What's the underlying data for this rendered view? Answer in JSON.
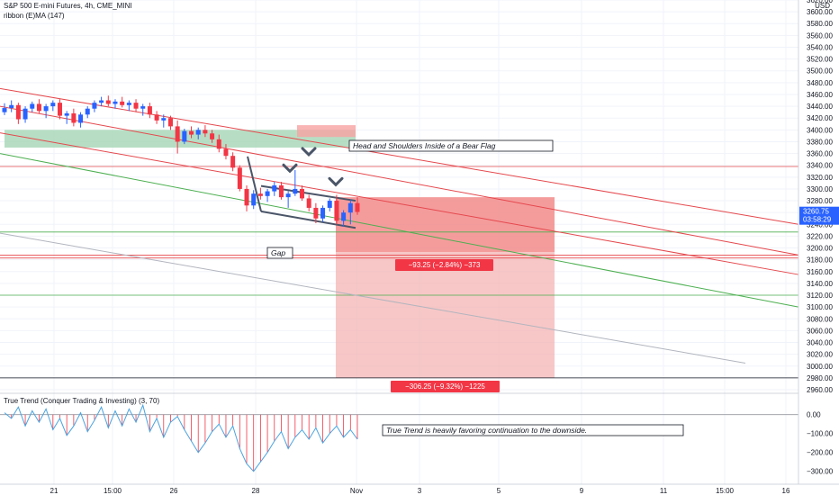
{
  "header": {
    "symbol_line": "S&P 500 E-mini Futures, 4h, CME_MINI",
    "ribbon_line": "ribbon (E)MA (147)"
  },
  "price_axis": {
    "currency": "USD",
    "ticks": [
      "3620.00",
      "3600.00",
      "3580.00",
      "3560.00",
      "3540.00",
      "3520.00",
      "3500.00",
      "3480.00",
      "3460.00",
      "3440.00",
      "3420.00",
      "3400.00",
      "3380.00",
      "3360.00",
      "3340.00",
      "3320.00",
      "3300.00",
      "3280.00",
      "3260.00",
      "3240.00",
      "3220.00",
      "3200.00",
      "3180.00",
      "3160.00",
      "3140.00",
      "3120.00",
      "3100.00",
      "3080.00",
      "3060.00",
      "3040.00",
      "3020.00",
      "3000.00",
      "2980.00",
      "2960.00"
    ],
    "ylim": [
      2960,
      3620
    ],
    "last_price": "3260.75",
    "countdown": "03:58:29",
    "last_price_color": "#2962ff"
  },
  "indicator": {
    "title": "True Trend (Conquer Trading & Investing) (3, 70)",
    "ticks": [
      "0.00",
      "−100.00",
      "−200.00",
      "−300.00"
    ],
    "ylim": [
      -330,
      70
    ]
  },
  "time_axis": {
    "labels": [
      "21",
      "15:00",
      "26",
      "28",
      "Nov",
      "3",
      "5",
      "9",
      "11",
      "15:00",
      "16"
    ]
  },
  "annotations": {
    "pattern_label": "Head and Shoulders Inside of a Bear Flag",
    "gap_label": "Gap",
    "trend_label": "True Trend is heavily favoring continuation to the downside.",
    "measure_1": "−93.25 (−2.84%) −373",
    "measure_2": "−306.25 (−9.32%) −1225"
  },
  "colors": {
    "up": "#2962ff",
    "down": "#f23645",
    "channel": "#e5484d",
    "green_line": "#4caf50",
    "grey_line": "#b2b5be",
    "short_zone": "#f7a1a1",
    "green_zone": "#a5d6b5",
    "arrow": "#4a5568"
  },
  "chart_data": {
    "type": "candlestick",
    "y_unit": "USD",
    "ylim": [
      2960,
      3620
    ],
    "levels": [
      3338,
      3227,
      3188,
      3183,
      3120,
      2980
    ],
    "candles": [
      [
        3430,
        3445,
        3425,
        3437
      ],
      [
        3437,
        3450,
        3430,
        3442
      ],
      [
        3442,
        3446,
        3410,
        3418
      ],
      [
        3418,
        3440,
        3412,
        3436
      ],
      [
        3436,
        3448,
        3430,
        3444
      ],
      [
        3444,
        3452,
        3428,
        3432
      ],
      [
        3432,
        3444,
        3420,
        3440
      ],
      [
        3440,
        3450,
        3432,
        3446
      ],
      [
        3446,
        3452,
        3418,
        3424
      ],
      [
        3424,
        3432,
        3410,
        3428
      ],
      [
        3428,
        3436,
        3406,
        3412
      ],
      [
        3412,
        3430,
        3404,
        3426
      ],
      [
        3426,
        3440,
        3420,
        3436
      ],
      [
        3436,
        3450,
        3430,
        3446
      ],
      [
        3446,
        3456,
        3440,
        3450
      ],
      [
        3450,
        3458,
        3440,
        3444
      ],
      [
        3444,
        3452,
        3436,
        3448
      ],
      [
        3448,
        3456,
        3438,
        3442
      ],
      [
        3442,
        3450,
        3432,
        3446
      ],
      [
        3446,
        3452,
        3430,
        3436
      ],
      [
        3436,
        3444,
        3424,
        3440
      ],
      [
        3440,
        3446,
        3420,
        3426
      ],
      [
        3426,
        3432,
        3410,
        3416
      ],
      [
        3416,
        3426,
        3404,
        3420
      ],
      [
        3420,
        3424,
        3400,
        3406
      ],
      [
        3406,
        3416,
        3360,
        3380
      ],
      [
        3380,
        3402,
        3376,
        3398
      ],
      [
        3398,
        3406,
        3386,
        3392
      ],
      [
        3392,
        3404,
        3384,
        3400
      ],
      [
        3400,
        3408,
        3388,
        3394
      ],
      [
        3394,
        3400,
        3378,
        3384
      ],
      [
        3384,
        3392,
        3362,
        3368
      ],
      [
        3368,
        3376,
        3350,
        3356
      ],
      [
        3356,
        3362,
        3330,
        3336
      ],
      [
        3336,
        3340,
        3296,
        3300
      ],
      [
        3300,
        3306,
        3262,
        3272
      ],
      [
        3272,
        3298,
        3266,
        3292
      ],
      [
        3292,
        3302,
        3282,
        3288
      ],
      [
        3288,
        3300,
        3278,
        3296
      ],
      [
        3296,
        3312,
        3288,
        3306
      ],
      [
        3306,
        3312,
        3282,
        3286
      ],
      [
        3286,
        3296,
        3268,
        3292
      ],
      [
        3292,
        3332,
        3288,
        3300
      ],
      [
        3300,
        3306,
        3280,
        3284
      ],
      [
        3284,
        3290,
        3262,
        3268
      ],
      [
        3268,
        3276,
        3242,
        3250
      ],
      [
        3250,
        3272,
        3244,
        3268
      ],
      [
        3268,
        3284,
        3262,
        3280
      ],
      [
        3280,
        3290,
        3240,
        3246
      ],
      [
        3246,
        3264,
        3236,
        3260
      ],
      [
        3260,
        3282,
        3240,
        3276
      ],
      [
        3276,
        3286,
        3256,
        3261
      ]
    ],
    "indicator_values": [
      10,
      -20,
      40,
      -60,
      20,
      -40,
      30,
      -80,
      -20,
      -110,
      -60,
      10,
      -90,
      -30,
      40,
      -70,
      20,
      -60,
      30,
      -40,
      50,
      -90,
      -20,
      -120,
      -40,
      -10,
      -80,
      -140,
      -200,
      -150,
      -90,
      -50,
      -120,
      -60,
      -180,
      -260,
      -300,
      -250,
      -200,
      -140,
      -90,
      -180,
      -120,
      -80,
      -130,
      -70,
      -150,
      -100,
      -60,
      -120,
      -80,
      -130
    ]
  }
}
